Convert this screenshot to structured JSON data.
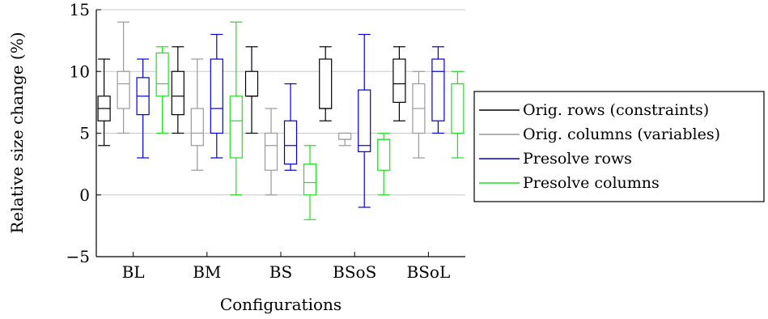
{
  "chart_data": {
    "type": "box",
    "xlabel": "Configurations",
    "ylabel": "Relative size change (%)",
    "ylim": [
      -5,
      15
    ],
    "yticks": [
      -5,
      0,
      5,
      10,
      15
    ],
    "grid": "horizontal",
    "legend_position": "right",
    "categories": [
      "BL",
      "BM",
      "BS",
      "BSoS",
      "BSoL"
    ],
    "series": [
      {
        "name": "Orig. rows (constraints)",
        "color": "#000000",
        "boxes": [
          {
            "min": 4,
            "q1": 6,
            "median": 7,
            "q3": 8,
            "max": 11
          },
          {
            "min": 5,
            "q1": 6.5,
            "median": 8,
            "q3": 10,
            "max": 12
          },
          {
            "min": 5,
            "q1": 8,
            "median": 8,
            "q3": 10,
            "max": 12
          },
          {
            "min": 6,
            "q1": 7,
            "median": 7,
            "q3": 11,
            "max": 12
          },
          {
            "min": 6,
            "q1": 7.5,
            "median": 9,
            "q3": 11,
            "max": 12
          }
        ]
      },
      {
        "name": "Orig. columns (variables)",
        "color": "#999999",
        "boxes": [
          {
            "min": 5,
            "q1": 7,
            "median": 9,
            "q3": 10,
            "max": 14
          },
          {
            "min": 2,
            "q1": 4,
            "median": 5,
            "q3": 7,
            "max": 11
          },
          {
            "min": 0,
            "q1": 2,
            "median": 4,
            "q3": 5,
            "max": 7
          },
          {
            "min": 4,
            "q1": 4.5,
            "median": 4.5,
            "q3": 5,
            "max": 5
          },
          {
            "min": 3,
            "q1": 5,
            "median": 7,
            "q3": 9,
            "max": 10
          }
        ]
      },
      {
        "name": "Presolve rows",
        "color": "#0000cc",
        "boxes": [
          {
            "min": 3,
            "q1": 6.5,
            "median": 8,
            "q3": 9.5,
            "max": 11
          },
          {
            "min": 3,
            "q1": 5,
            "median": 7,
            "q3": 11,
            "max": 13
          },
          {
            "min": 2,
            "q1": 2.5,
            "median": 4,
            "q3": 6,
            "max": 9
          },
          {
            "min": -1,
            "q1": 3.5,
            "median": 4,
            "q3": 8.5,
            "max": 13
          },
          {
            "min": 5,
            "q1": 6,
            "median": 10,
            "q3": 11,
            "max": 12
          }
        ]
      },
      {
        "name": "Presolve columns",
        "color": "#22dd22",
        "boxes": [
          {
            "min": 5,
            "q1": 8,
            "median": 9,
            "q3": 11.5,
            "max": 12
          },
          {
            "min": 0,
            "q1": 3,
            "median": 6,
            "q3": 8,
            "max": 14
          },
          {
            "min": -2,
            "q1": 0,
            "median": 1,
            "q3": 2.5,
            "max": 4
          },
          {
            "min": 0,
            "q1": 2,
            "median": 4.5,
            "q3": 4.5,
            "max": 5
          },
          {
            "min": 3,
            "q1": 5,
            "median": 9,
            "q3": 9,
            "max": 10
          }
        ]
      }
    ]
  }
}
